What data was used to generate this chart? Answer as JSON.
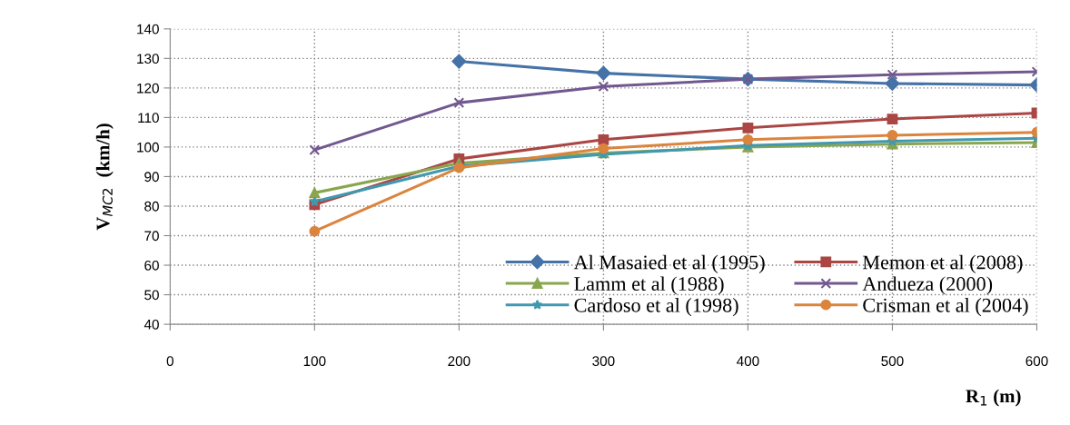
{
  "chart_data": {
    "type": "line",
    "xlabel": "R$_{1}$ (m)",
    "ylabel": "V$_{MC2}$  (km/h)",
    "x": [
      100,
      200,
      300,
      400,
      500,
      600
    ],
    "series": [
      {
        "name": "Al Masaied et al (1995)",
        "color": "#4572a7",
        "marker": "diamond",
        "values": [
          null,
          129,
          125,
          123,
          121.5,
          121
        ]
      },
      {
        "name": "Memon et al (2008)",
        "color": "#aa4643",
        "marker": "square",
        "values": [
          80.5,
          96,
          102.5,
          106.5,
          109.5,
          111.5
        ]
      },
      {
        "name": "Lamm et al (1988)",
        "color": "#89a54e",
        "marker": "triangle",
        "values": [
          84.5,
          94.5,
          98,
          100,
          101,
          101.5
        ]
      },
      {
        "name": "Andueza (2000)",
        "color": "#71588f",
        "marker": "cross",
        "values": [
          99,
          115,
          120.5,
          123,
          124.5,
          125.5
        ]
      },
      {
        "name": "Cardoso et al (1998)",
        "color": "#4198af",
        "marker": "star",
        "values": [
          81.5,
          93.5,
          97.5,
          100.5,
          102,
          103
        ]
      },
      {
        "name": "Crisman et al (2004)",
        "color": "#db843d",
        "marker": "circle",
        "values": [
          71.5,
          93,
          99.5,
          102.5,
          104,
          105
        ]
      }
    ],
    "xlim": [
      0,
      600
    ],
    "xticks": [
      0,
      100,
      200,
      300,
      400,
      500,
      600
    ],
    "ylim": [
      40,
      140
    ],
    "yticks": [
      40,
      50,
      60,
      70,
      80,
      90,
      100,
      110,
      120,
      130,
      140
    ],
    "grid": true,
    "legend": "bottom right"
  }
}
